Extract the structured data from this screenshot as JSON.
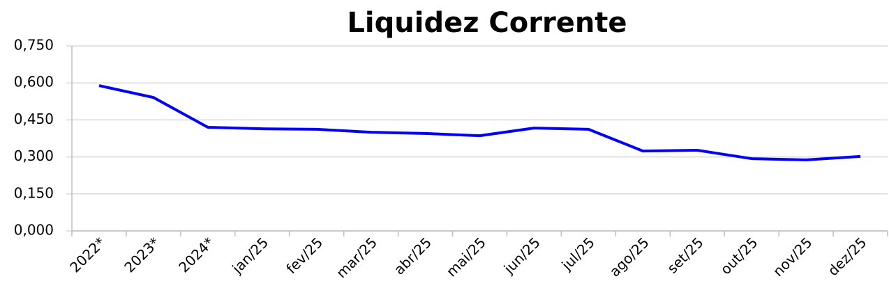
{
  "chart_data": {
    "type": "line",
    "title": "Liquidez Corrente",
    "categories": [
      "2022*",
      "2023*",
      "2024*",
      "jan/25",
      "fev/25",
      "mar/25",
      "abr/25",
      "mai/25",
      "jun/25",
      "jul/25",
      "ago/25",
      "set/25",
      "out/25",
      "nov/25",
      "dez/25"
    ],
    "series": [
      {
        "name": "Liquidez Corrente",
        "color": "#0000ff",
        "values": [
          0.589,
          0.541,
          0.42,
          0.414,
          0.412,
          0.4,
          0.395,
          0.386,
          0.417,
          0.412,
          0.324,
          0.327,
          0.293,
          0.288,
          0.302
        ]
      }
    ],
    "ylim": [
      0,
      0.75
    ],
    "yticks": [
      {
        "value": 0,
        "label": "0,000"
      },
      {
        "value": 0.15,
        "label": "0,150"
      },
      {
        "value": 0.3,
        "label": "0,300"
      },
      {
        "value": 0.45,
        "label": "0,450"
      },
      {
        "value": 0.6,
        "label": "0,600"
      },
      {
        "value": 0.75,
        "label": "0,750"
      }
    ],
    "grid": true
  }
}
